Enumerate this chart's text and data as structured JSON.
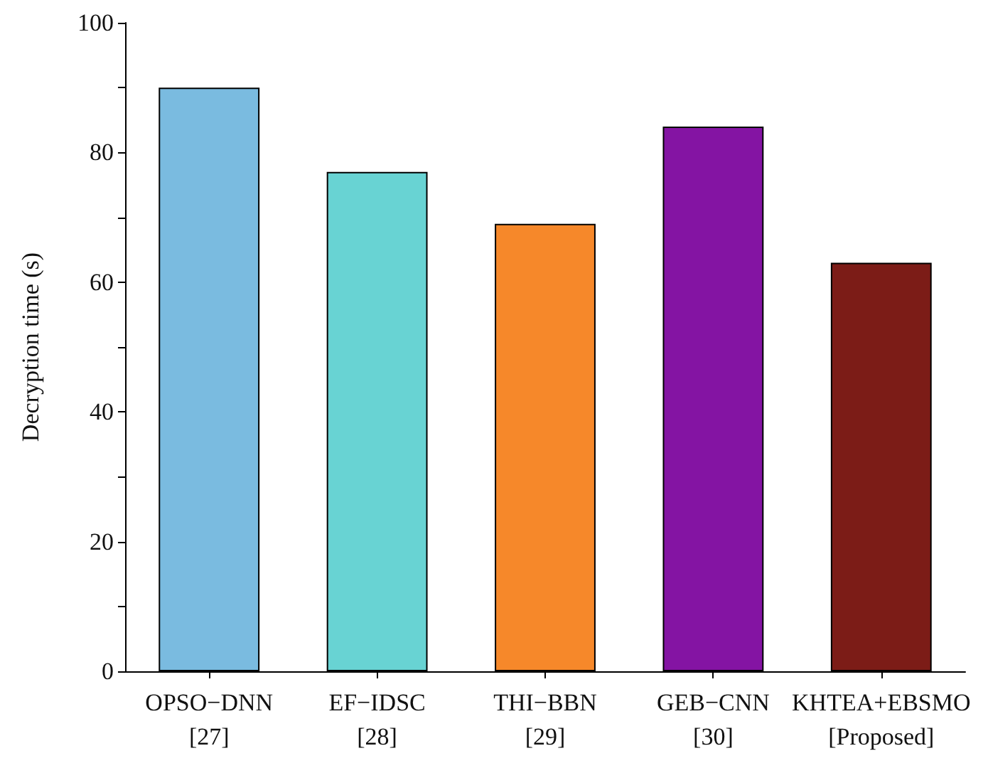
{
  "chart_data": {
    "type": "bar",
    "ylabel": "Decryption time (s)",
    "categories": [
      "OPSO−DNN\n[27]",
      "EF−IDSC\n[28]",
      "THI−BBN\n[29]",
      "GEB−CNN\n[30]",
      "KHTEA+EBSMO\n[Proposed]"
    ],
    "values": [
      90,
      77,
      69,
      84,
      63
    ],
    "colors": [
      "#7abbe0",
      "#68d3d3",
      "#f6882a",
      "#8414a3",
      "#7c1c17"
    ],
    "ylim": [
      0,
      100
    ],
    "yticks": [
      0,
      {
        "value": 10,
        "label": null
      },
      20,
      {
        "value": 30,
        "label": null
      },
      40,
      {
        "value": 50,
        "label": null
      },
      60,
      {
        "value": 70,
        "label": null
      },
      80,
      {
        "value": 90,
        "label": null
      },
      100
    ],
    "grid": false
  }
}
